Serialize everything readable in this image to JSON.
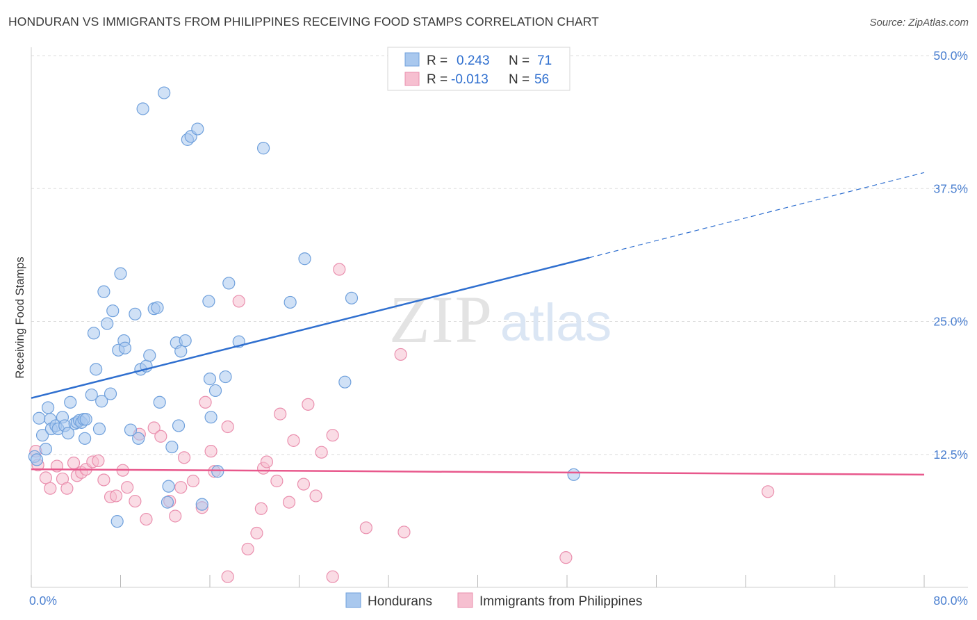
{
  "title": "HONDURAN VS IMMIGRANTS FROM PHILIPPINES RECEIVING FOOD STAMPS CORRELATION CHART",
  "source": "Source: ZipAtlas.com",
  "watermark": {
    "zip": "ZIP",
    "atlas": "atlas"
  },
  "colors": {
    "blue": "#a9c8ee",
    "blue_stroke": "#6fa0dc",
    "blue_line": "#2f6fcf",
    "pink": "#f6bfd0",
    "pink_stroke": "#ea8fae",
    "pink_line": "#e8588c",
    "grid": "#dedede",
    "tick_text": "#4a7fd0"
  },
  "legend": {
    "rows": [
      {
        "r_label": "R =",
        "r_value": "0.243",
        "n_label": "N =",
        "n_value": "71"
      },
      {
        "r_label": "R =",
        "r_value": "-0.013",
        "n_label": "N =",
        "n_value": "56"
      }
    ]
  },
  "chart_data": {
    "type": "scatter",
    "xlabel": "",
    "ylabel": "Receiving Food Stamps",
    "xlim": [
      0,
      80
    ],
    "ylim": [
      0,
      50
    ],
    "x_tick_labels": [
      "0.0%",
      "80.0%"
    ],
    "y_ticks": [
      12.5,
      25.0,
      37.5,
      50.0
    ],
    "y_tick_labels": [
      "12.5%",
      "25.0%",
      "37.5%",
      "50.0%"
    ],
    "grid": true,
    "legend_position": "top-center",
    "series": [
      {
        "name": "Hondurans",
        "color": "#a9c8ee",
        "trend": {
          "x0": 0,
          "y0": 17.8,
          "x1": 50,
          "y1": 31.0,
          "dashed_to_x": 80,
          "dashed_to_y": 39.0
        },
        "points": [
          [
            0.3,
            12.3
          ],
          [
            0.5,
            12.0
          ],
          [
            0.7,
            15.9
          ],
          [
            1.0,
            14.3
          ],
          [
            1.3,
            13.0
          ],
          [
            1.5,
            16.9
          ],
          [
            1.7,
            15.8
          ],
          [
            1.8,
            14.9
          ],
          [
            2.2,
            15.2
          ],
          [
            2.4,
            14.9
          ],
          [
            2.8,
            16.0
          ],
          [
            3.0,
            15.2
          ],
          [
            3.3,
            14.5
          ],
          [
            3.5,
            17.4
          ],
          [
            3.9,
            15.4
          ],
          [
            4.1,
            15.5
          ],
          [
            4.3,
            15.7
          ],
          [
            4.5,
            15.5
          ],
          [
            4.7,
            15.8
          ],
          [
            4.8,
            14.0
          ],
          [
            4.9,
            15.8
          ],
          [
            5.4,
            18.1
          ],
          [
            5.6,
            23.9
          ],
          [
            5.8,
            20.5
          ],
          [
            6.1,
            14.9
          ],
          [
            6.3,
            17.5
          ],
          [
            6.5,
            27.8
          ],
          [
            6.8,
            24.8
          ],
          [
            7.1,
            18.2
          ],
          [
            7.3,
            26.0
          ],
          [
            7.8,
            22.3
          ],
          [
            8.0,
            29.5
          ],
          [
            8.3,
            23.2
          ],
          [
            8.4,
            22.5
          ],
          [
            8.9,
            14.8
          ],
          [
            9.3,
            25.7
          ],
          [
            9.6,
            14.0
          ],
          [
            9.8,
            20.5
          ],
          [
            10.0,
            45.0
          ],
          [
            10.3,
            20.8
          ],
          [
            10.6,
            21.8
          ],
          [
            11.0,
            26.2
          ],
          [
            11.3,
            26.3
          ],
          [
            11.5,
            17.4
          ],
          [
            11.9,
            46.5
          ],
          [
            12.2,
            8.0
          ],
          [
            12.3,
            9.5
          ],
          [
            12.6,
            13.2
          ],
          [
            13.0,
            23.0
          ],
          [
            13.2,
            15.2
          ],
          [
            13.4,
            22.2
          ],
          [
            13.8,
            23.2
          ],
          [
            14.0,
            42.1
          ],
          [
            14.3,
            42.4
          ],
          [
            14.9,
            43.1
          ],
          [
            15.3,
            7.8
          ],
          [
            15.9,
            26.9
          ],
          [
            16.0,
            19.6
          ],
          [
            16.1,
            16.0
          ],
          [
            16.5,
            18.5
          ],
          [
            16.7,
            10.9
          ],
          [
            17.4,
            19.8
          ],
          [
            17.7,
            28.6
          ],
          [
            18.6,
            23.1
          ],
          [
            20.8,
            41.3
          ],
          [
            23.2,
            26.8
          ],
          [
            24.5,
            30.9
          ],
          [
            28.1,
            19.3
          ],
          [
            28.7,
            27.2
          ],
          [
            48.6,
            10.6
          ],
          [
            7.7,
            6.2
          ]
        ]
      },
      {
        "name": "Immigrants from Philippines",
        "color": "#f6bfd0",
        "trend": {
          "x0": 0,
          "y0": 11.1,
          "x1": 80,
          "y1": 10.6
        },
        "points": [
          [
            0.4,
            12.8
          ],
          [
            0.6,
            11.5
          ],
          [
            1.3,
            10.3
          ],
          [
            1.7,
            9.3
          ],
          [
            2.3,
            11.4
          ],
          [
            2.8,
            10.2
          ],
          [
            3.2,
            9.3
          ],
          [
            3.8,
            11.7
          ],
          [
            4.1,
            10.5
          ],
          [
            4.5,
            10.8
          ],
          [
            4.9,
            11.1
          ],
          [
            5.5,
            11.8
          ],
          [
            6.0,
            11.9
          ],
          [
            6.5,
            10.1
          ],
          [
            7.1,
            8.5
          ],
          [
            7.6,
            8.6
          ],
          [
            8.2,
            11.0
          ],
          [
            8.6,
            9.4
          ],
          [
            9.3,
            8.1
          ],
          [
            9.7,
            14.4
          ],
          [
            10.3,
            6.4
          ],
          [
            11.0,
            15.0
          ],
          [
            11.6,
            14.2
          ],
          [
            12.4,
            8.1
          ],
          [
            12.9,
            6.7
          ],
          [
            13.4,
            9.4
          ],
          [
            13.7,
            12.2
          ],
          [
            14.5,
            10.0
          ],
          [
            15.3,
            7.5
          ],
          [
            15.6,
            17.4
          ],
          [
            16.1,
            12.8
          ],
          [
            16.4,
            10.9
          ],
          [
            17.6,
            15.1
          ],
          [
            18.6,
            26.9
          ],
          [
            19.4,
            3.6
          ],
          [
            20.2,
            5.1
          ],
          [
            20.6,
            7.4
          ],
          [
            20.8,
            11.2
          ],
          [
            21.1,
            11.8
          ],
          [
            22.0,
            10.0
          ],
          [
            22.3,
            16.3
          ],
          [
            23.1,
            8.0
          ],
          [
            23.5,
            13.8
          ],
          [
            24.4,
            9.7
          ],
          [
            24.8,
            17.2
          ],
          [
            25.5,
            8.6
          ],
          [
            26.0,
            12.7
          ],
          [
            27.0,
            14.3
          ],
          [
            27.6,
            29.9
          ],
          [
            30.0,
            5.6
          ],
          [
            33.1,
            21.9
          ],
          [
            33.4,
            5.2
          ],
          [
            47.9,
            2.8
          ],
          [
            66.0,
            9.0
          ],
          [
            17.6,
            1.0
          ],
          [
            27.0,
            1.0
          ]
        ]
      }
    ]
  }
}
